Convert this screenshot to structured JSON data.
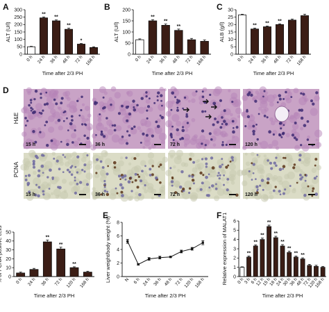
{
  "colors": {
    "dark_bar": "#3b1d15",
    "he_tissue": "#c9a3c6",
    "pcna_tissue": "#dbdcc6",
    "line": "#111111"
  },
  "panels": {
    "a": "A",
    "b": "B",
    "c": "C",
    "d": "D",
    "e": "E",
    "f": "F"
  },
  "micro": {
    "row_labels": [
      "H&E",
      "PCNA"
    ],
    "he_labels": [
      "15 h",
      "36 h",
      "72 h",
      "120 h"
    ],
    "pcna_labels": [
      "15 h",
      "36 h",
      "72 h",
      "120 h"
    ]
  },
  "chart_data": [
    {
      "id": "A",
      "type": "bar",
      "categories": [
        "0 h",
        "24 h",
        "36 h",
        "48 h",
        "72 h",
        "168 h"
      ],
      "values": [
        50,
        245,
        225,
        168,
        68,
        45
      ],
      "errors": [
        3,
        6,
        6,
        8,
        4,
        5
      ],
      "significance": [
        "",
        "**",
        "**",
        "**",
        "*",
        ""
      ],
      "ylabel": "ALT (U/l)",
      "xlabel": "Time after 2/3 PH",
      "ylim": [
        0,
        300
      ],
      "yticks": [
        0,
        50,
        100,
        150,
        200,
        250,
        300
      ],
      "first_bar_open": true
    },
    {
      "id": "B",
      "type": "bar",
      "categories": [
        "0 h",
        "24 h",
        "36 h",
        "48 h",
        "72 h",
        "168 h"
      ],
      "values": [
        65,
        150,
        130,
        107,
        65,
        58
      ],
      "errors": [
        4,
        5,
        6,
        6,
        6,
        6
      ],
      "significance": [
        "",
        "**",
        "**",
        "**",
        "",
        ""
      ],
      "ylabel": "ALT (U/l)",
      "xlabel": "Time after 2/3 PH",
      "ylim": [
        0,
        200
      ],
      "yticks": [
        0,
        50,
        100,
        150,
        200
      ],
      "first_bar_open": true
    },
    {
      "id": "C",
      "type": "bar",
      "categories": [
        "0 h",
        "24 h",
        "36 h",
        "48 h",
        "72 h",
        "168 h"
      ],
      "values": [
        26.5,
        17,
        18.5,
        20,
        23,
        26
      ],
      "errors": [
        0.4,
        0.6,
        0.5,
        0.5,
        0.7,
        1.0
      ],
      "significance": [
        "",
        "**",
        "**",
        "**",
        "",
        ""
      ],
      "ylabel": "ALB (g/l)",
      "xlabel": "Time after 2/3 PH",
      "ylim": [
        0,
        30
      ],
      "yticks": [
        0,
        5,
        10,
        15,
        20,
        25,
        30
      ],
      "first_bar_open": true
    },
    {
      "id": "D2",
      "type": "bar",
      "categories": [
        "0 h",
        "24 h",
        "36 h",
        "72 h",
        "120 h",
        "168 h"
      ],
      "values": [
        4,
        8,
        39,
        31,
        10,
        5
      ],
      "errors": [
        1,
        1.2,
        2,
        2,
        1,
        1
      ],
      "significance": [
        "",
        "",
        "**",
        "**",
        "**",
        ""
      ],
      "ylabel": "% of PCNA-positive cells",
      "xlabel": "Time after 2/3 PH",
      "ylim": [
        0,
        50
      ],
      "yticks": [
        0,
        10,
        20,
        30,
        40,
        50
      ],
      "first_bar_open": false
    },
    {
      "id": "E",
      "type": "line",
      "categories": [
        "N",
        "6 h",
        "24 h",
        "36 h",
        "48 h",
        "72 h",
        "120 h",
        "168 h"
      ],
      "values": [
        5.2,
        1.8,
        2.6,
        2.8,
        2.9,
        3.7,
        4.1,
        5.0
      ],
      "errors": [
        0.3,
        0.1,
        0.2,
        0.2,
        0.1,
        0.2,
        0.2,
        0.3
      ],
      "ylabel": "Liver weight/body weight (%)",
      "xlabel": "Time after 2/3 PH",
      "ylim": [
        0,
        8
      ],
      "yticks": [
        0,
        2,
        4,
        6,
        8
      ]
    },
    {
      "id": "F",
      "type": "bar",
      "categories": [
        "0 h",
        "3 h",
        "6 h",
        "12 h",
        "15 h",
        "18 h",
        "24 h",
        "30 h",
        "36 h",
        "48 h",
        "72 h",
        "120 h",
        "168 h"
      ],
      "values": [
        1.0,
        2.1,
        3.3,
        4.0,
        5.4,
        4.2,
        3.3,
        2.6,
        2.1,
        1.9,
        1.2,
        1.1,
        1.0
      ],
      "errors": [
        0.05,
        0.12,
        0.12,
        0.15,
        0.15,
        0.15,
        0.15,
        0.15,
        0.12,
        0.12,
        0.12,
        0.12,
        0.1
      ],
      "significance": [
        "",
        "**",
        "**",
        "**",
        "**",
        "**",
        "**",
        "**",
        "**",
        "**",
        "",
        "",
        ""
      ],
      "ylabel": "Relative expression of MALAT1",
      "xlabel": "Time after 2/3 PH",
      "ylim": [
        0,
        6
      ],
      "yticks": [
        0,
        1,
        2,
        3,
        4,
        5,
        6
      ],
      "first_bar_open": true
    }
  ]
}
